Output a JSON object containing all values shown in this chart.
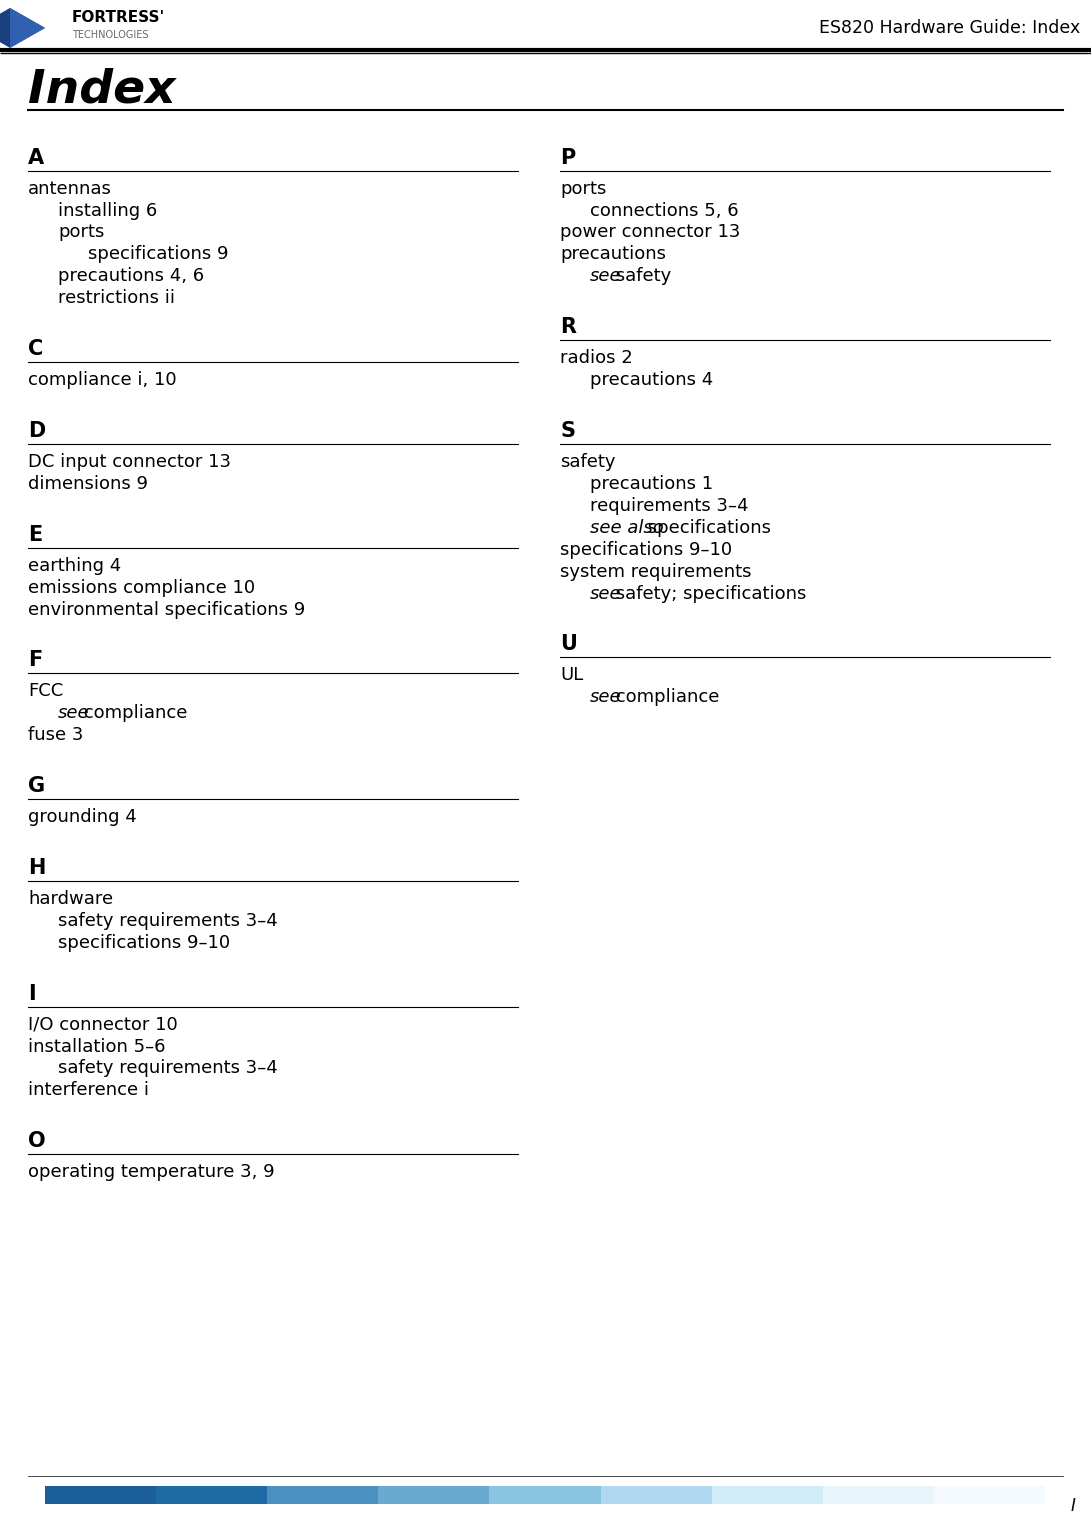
{
  "page_title": "Index",
  "header_right": "ES820 Hardware Guide: Index",
  "bg_color": "#ffffff",
  "text_color": "#000000",
  "header_line_color": "#000000",
  "title_font_size": 32,
  "section_font_size": 16,
  "body_font_size": 13,
  "left_column": [
    {
      "type": "section",
      "letter": "A"
    },
    {
      "type": "entry",
      "indent": 0,
      "text": "antennas"
    },
    {
      "type": "entry",
      "indent": 1,
      "text": "installing 6"
    },
    {
      "type": "entry",
      "indent": 1,
      "text": "ports"
    },
    {
      "type": "entry",
      "indent": 2,
      "text": "specifications 9"
    },
    {
      "type": "entry",
      "indent": 1,
      "text": "precautions 4, 6"
    },
    {
      "type": "entry",
      "indent": 1,
      "text": "restrictions ii"
    },
    {
      "type": "spacer"
    },
    {
      "type": "section",
      "letter": "C"
    },
    {
      "type": "entry",
      "indent": 0,
      "text": "compliance i, 10"
    },
    {
      "type": "spacer"
    },
    {
      "type": "section",
      "letter": "D"
    },
    {
      "type": "entry",
      "indent": 0,
      "text": "DC input connector 13"
    },
    {
      "type": "entry",
      "indent": 0,
      "text": "dimensions 9"
    },
    {
      "type": "spacer"
    },
    {
      "type": "section",
      "letter": "E"
    },
    {
      "type": "entry",
      "indent": 0,
      "text": "earthing 4"
    },
    {
      "type": "entry",
      "indent": 0,
      "text": "emissions compliance 10"
    },
    {
      "type": "entry",
      "indent": 0,
      "text": "environmental specifications 9"
    },
    {
      "type": "spacer"
    },
    {
      "type": "section",
      "letter": "F"
    },
    {
      "type": "entry",
      "indent": 0,
      "text": "FCC"
    },
    {
      "type": "entry",
      "indent": 1,
      "italic": true,
      "text": "see",
      "text2": " compliance"
    },
    {
      "type": "entry",
      "indent": 0,
      "text": "fuse 3"
    },
    {
      "type": "spacer"
    },
    {
      "type": "section",
      "letter": "G"
    },
    {
      "type": "entry",
      "indent": 0,
      "text": "grounding 4"
    },
    {
      "type": "spacer"
    },
    {
      "type": "section",
      "letter": "H"
    },
    {
      "type": "entry",
      "indent": 0,
      "text": "hardware"
    },
    {
      "type": "entry",
      "indent": 1,
      "text": "safety requirements 3–4"
    },
    {
      "type": "entry",
      "indent": 1,
      "text": "specifications 9–10"
    },
    {
      "type": "spacer"
    },
    {
      "type": "section",
      "letter": "I"
    },
    {
      "type": "entry",
      "indent": 0,
      "text": "I/O connector 10"
    },
    {
      "type": "entry",
      "indent": 0,
      "text": "installation 5–6"
    },
    {
      "type": "entry",
      "indent": 1,
      "text": "safety requirements 3–4"
    },
    {
      "type": "entry",
      "indent": 0,
      "text": "interference i"
    },
    {
      "type": "spacer"
    },
    {
      "type": "section",
      "letter": "O"
    },
    {
      "type": "entry",
      "indent": 0,
      "text": "operating temperature 3, 9"
    }
  ],
  "right_column": [
    {
      "type": "section",
      "letter": "P"
    },
    {
      "type": "entry",
      "indent": 0,
      "text": "ports"
    },
    {
      "type": "entry",
      "indent": 1,
      "text": "connections 5, 6"
    },
    {
      "type": "entry",
      "indent": 0,
      "text": "power connector 13"
    },
    {
      "type": "entry",
      "indent": 0,
      "text": "precautions"
    },
    {
      "type": "entry",
      "indent": 1,
      "italic": true,
      "text": "see",
      "text2": " safety"
    },
    {
      "type": "spacer"
    },
    {
      "type": "section",
      "letter": "R"
    },
    {
      "type": "entry",
      "indent": 0,
      "text": "radios 2"
    },
    {
      "type": "entry",
      "indent": 1,
      "text": "precautions 4"
    },
    {
      "type": "spacer"
    },
    {
      "type": "section",
      "letter": "S"
    },
    {
      "type": "entry",
      "indent": 0,
      "text": "safety"
    },
    {
      "type": "entry",
      "indent": 1,
      "text": "precautions 1"
    },
    {
      "type": "entry",
      "indent": 1,
      "text": "requirements 3–4"
    },
    {
      "type": "entry",
      "indent": 1,
      "italic": true,
      "text": "see also",
      "text2": " specifications"
    },
    {
      "type": "entry",
      "indent": 0,
      "text": "specifications 9–10"
    },
    {
      "type": "entry",
      "indent": 0,
      "text": "system requirements"
    },
    {
      "type": "entry",
      "indent": 1,
      "italic": true,
      "text": "see",
      "text2": " safety; specifications"
    },
    {
      "type": "spacer"
    },
    {
      "type": "section",
      "letter": "U"
    },
    {
      "type": "entry",
      "indent": 0,
      "text": "UL"
    },
    {
      "type": "entry",
      "indent": 1,
      "italic": true,
      "text": "see",
      "text2": " compliance"
    }
  ],
  "footer_bar_colors": [
    "#1e6fa8",
    "#1e6fa8",
    "#2e7db8",
    "#3d8dc8",
    "#6bafd8",
    "#9ad0e8",
    "#c8e8f0",
    "#e0f0f8",
    "#f0f8ff"
  ],
  "page_number": "I",
  "logo_text": "FORTRESS\nTECHNOLOGIES"
}
